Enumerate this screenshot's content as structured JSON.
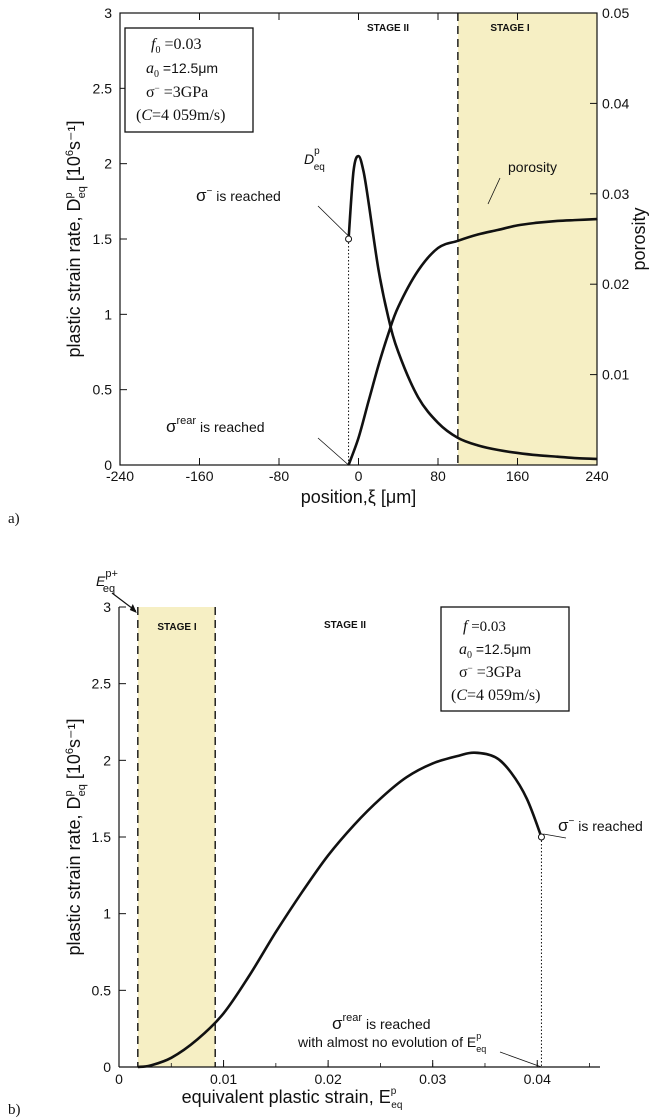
{
  "chart_data": [
    {
      "panel": "a)",
      "type": "line",
      "xlabel": "position,ξ [μm]",
      "ylabel": "plastic strain rate, D",
      "ylabel_sub": "eq",
      "ylabel_sup": "p",
      "ylabel_unit": " [10",
      "ylabel_unit_exp": "6",
      "ylabel_unit_tail": "s⁻¹]",
      "y2label": "porosity",
      "xlim": [
        -240,
        240
      ],
      "ylim": [
        0,
        3
      ],
      "y2lim": [
        0,
        0.05
      ],
      "x_ticks": [
        "-240",
        "-160",
        "-80",
        "0",
        "80",
        "160",
        "240"
      ],
      "y_ticks": [
        "0",
        "0.5",
        "1",
        "1.5",
        "2",
        "2.5",
        "3"
      ],
      "y2_ticks": [
        "0.01",
        "0.02",
        "0.03",
        "0.04",
        "0.05"
      ],
      "stages": [
        {
          "label": "STAGE II",
          "from": -10,
          "to": 100,
          "shaded": false
        },
        {
          "label": "STAGE I",
          "from": 100,
          "to": 240,
          "shaded": true
        }
      ],
      "series": [
        {
          "name": "D",
          "axis": "left",
          "x": [
            -10,
            -5,
            0,
            5,
            10,
            20,
            30,
            40,
            60,
            80,
            100,
            120,
            140,
            160,
            180,
            200,
            220,
            240
          ],
          "y": [
            1.5,
            1.95,
            2.05,
            1.95,
            1.75,
            1.3,
            0.98,
            0.75,
            0.45,
            0.28,
            0.18,
            0.13,
            0.1,
            0.08,
            0.065,
            0.055,
            0.045,
            0.04
          ]
        },
        {
          "name": "porosity",
          "axis": "right",
          "x": [
            -10,
            0,
            10,
            20,
            30,
            40,
            60,
            80,
            100,
            120,
            140,
            160,
            180,
            200,
            220,
            240
          ],
          "y": [
            0.0,
            0.003,
            0.007,
            0.011,
            0.0145,
            0.0175,
            0.0215,
            0.024,
            0.0248,
            0.0255,
            0.026,
            0.0265,
            0.0268,
            0.027,
            0.0271,
            0.0272
          ]
        }
      ],
      "annotations": {
        "curve_label": "D",
        "curve_label_sub": "eq",
        "curve_label_sup": "p",
        "porosity_label": "porosity",
        "sigma_reached": "σ",
        "sigma_reached_sup": "−",
        "sigma_reached_tail": " is reached",
        "sigma_rear": "σ",
        "sigma_rear_sup": "rear",
        "sigma_rear_tail": " is reached"
      },
      "param_box": {
        "f0": "f",
        "f0_sub": "0",
        "f0_val": " =0.03",
        "a0": "a",
        "a0_sub": "0",
        "a0_val": " =12.5μm",
        "sigma": "σ",
        "sigma_sup": "−",
        "sigma_val": " =3GPa",
        "c_line_c": "C",
        "c_line_val": "=4 059m/s)",
        "c_line_open": "("
      }
    },
    {
      "panel": "b)",
      "type": "line",
      "xlabel": "equivalent plastic strain, E",
      "xlabel_sub": "eq",
      "xlabel_sup": "p",
      "ylabel": "plastic strain rate, D",
      "ylabel_sub": "eq",
      "ylabel_sup": "p",
      "ylabel_unit": " [10",
      "ylabel_unit_exp": "6",
      "ylabel_unit_tail": "s⁻¹]",
      "xlim": [
        0,
        0.046
      ],
      "ylim": [
        0,
        3
      ],
      "x_ticks": [
        "0",
        "0.01",
        "0.02",
        "0.03",
        "0.04"
      ],
      "x_tick_values": [
        0,
        0.01,
        0.02,
        0.03,
        0.04
      ],
      "y_ticks": [
        "0",
        "0.5",
        "1",
        "1.5",
        "2",
        "2.5",
        "3"
      ],
      "stages": [
        {
          "label": "STAGE I",
          "from": 0.0018,
          "to": 0.0092,
          "shaded": true
        },
        {
          "label": "STAGE II",
          "from": 0.0092,
          "to": 0.0404,
          "shaded": false
        }
      ],
      "series": [
        {
          "name": "D",
          "x": [
            0.0018,
            0.003,
            0.005,
            0.0075,
            0.01,
            0.0125,
            0.015,
            0.0175,
            0.02,
            0.0225,
            0.025,
            0.0275,
            0.03,
            0.0325,
            0.034,
            0.036,
            0.0375,
            0.039,
            0.0404
          ],
          "y": [
            0.0,
            0.01,
            0.06,
            0.18,
            0.35,
            0.6,
            0.88,
            1.14,
            1.38,
            1.58,
            1.75,
            1.89,
            1.98,
            2.03,
            2.05,
            2.02,
            1.92,
            1.75,
            1.5
          ]
        }
      ],
      "annotations": {
        "e_label": "E",
        "e_label_sub": "eq",
        "e_label_sup": "p+",
        "sigma_reached": "σ",
        "sigma_reached_sup": "−",
        "sigma_reached_tail": " is reached",
        "sigma_rear": "σ",
        "sigma_rear_sup": "rear",
        "sigma_rear_tail": " is reached",
        "evolution": "with almost no evolution of E",
        "evolution_sub": "eq",
        "evolution_sup": "p"
      },
      "param_box": {
        "f0": "f",
        "f0_sub": "",
        "f0_val": " =0.03",
        "a0": "a",
        "a0_sub": "0",
        "a0_val": " =12.5μm",
        "sigma": "σ",
        "sigma_sup": "−",
        "sigma_val": " =3GPa",
        "c_line_c": "C",
        "c_line_val": "=4 059m/s)",
        "c_line_open": "("
      }
    }
  ],
  "colors": {
    "stage_fill": "#f6efc4",
    "line": "#111111",
    "axis": "#111111"
  }
}
